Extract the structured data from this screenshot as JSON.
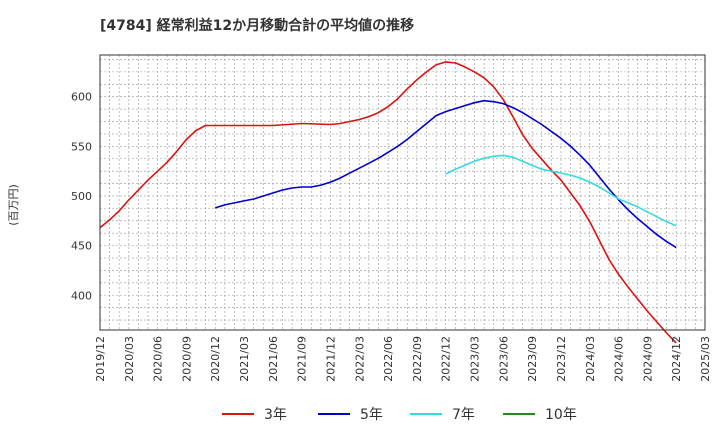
{
  "chart_data": {
    "type": "line",
    "title": "[4784]  経常利益12か月移動合計の平均値の推移",
    "ylabel": "(百万円)",
    "xlabel": "",
    "x_ticks": [
      "2019/12",
      "2020/03",
      "2020/06",
      "2020/09",
      "2020/12",
      "2021/03",
      "2021/06",
      "2021/09",
      "2021/12",
      "2022/03",
      "2022/06",
      "2022/09",
      "2022/12",
      "2023/03",
      "2023/06",
      "2023/09",
      "2023/12",
      "2024/03",
      "2024/06",
      "2024/09",
      "2024/12",
      "2025/03"
    ],
    "y_ticks": [
      400,
      450,
      500,
      550,
      600
    ],
    "ylim": [
      365,
      642
    ],
    "xlim": [
      "2019/12",
      "2025/03"
    ],
    "grid": true,
    "legend_position": "bottom",
    "series": [
      {
        "name": "3年",
        "color": "#dd1111",
        "points": [
          [
            "2019/12",
            468
          ],
          [
            "2020/01",
            476
          ],
          [
            "2020/02",
            485
          ],
          [
            "2020/03",
            496
          ],
          [
            "2020/04",
            506
          ],
          [
            "2020/05",
            516
          ],
          [
            "2020/06",
            525
          ],
          [
            "2020/07",
            534
          ],
          [
            "2020/08",
            545
          ],
          [
            "2020/09",
            557
          ],
          [
            "2020/10",
            566
          ],
          [
            "2020/11",
            571
          ],
          [
            "2020/12",
            571
          ],
          [
            "2021/03",
            571
          ],
          [
            "2021/06",
            571
          ],
          [
            "2021/09",
            573
          ],
          [
            "2021/12",
            572
          ],
          [
            "2022/01",
            573
          ],
          [
            "2022/02",
            575
          ],
          [
            "2022/03",
            577
          ],
          [
            "2022/04",
            580
          ],
          [
            "2022/05",
            584
          ],
          [
            "2022/06",
            590
          ],
          [
            "2022/07",
            598
          ],
          [
            "2022/08",
            608
          ],
          [
            "2022/09",
            617
          ],
          [
            "2022/10",
            625
          ],
          [
            "2022/11",
            632
          ],
          [
            "2022/12",
            635
          ],
          [
            "2023/01",
            634
          ],
          [
            "2023/02",
            630
          ],
          [
            "2023/03",
            625
          ],
          [
            "2023/04",
            619
          ],
          [
            "2023/05",
            610
          ],
          [
            "2023/06",
            597
          ],
          [
            "2023/07",
            580
          ],
          [
            "2023/08",
            562
          ],
          [
            "2023/09",
            548
          ],
          [
            "2023/10",
            537
          ],
          [
            "2023/11",
            526
          ],
          [
            "2023/12",
            516
          ],
          [
            "2024/01",
            503
          ],
          [
            "2024/02",
            490
          ],
          [
            "2024/03",
            474
          ],
          [
            "2024/04",
            455
          ],
          [
            "2024/05",
            436
          ],
          [
            "2024/06",
            421
          ],
          [
            "2024/07",
            408
          ],
          [
            "2024/08",
            396
          ],
          [
            "2024/09",
            384
          ],
          [
            "2024/10",
            373
          ],
          [
            "2024/11",
            362
          ],
          [
            "2024/12",
            352
          ]
        ]
      },
      {
        "name": "5年",
        "color": "#0000cc",
        "points": [
          [
            "2020/12",
            488
          ],
          [
            "2021/01",
            491
          ],
          [
            "2021/02",
            493
          ],
          [
            "2021/03",
            495
          ],
          [
            "2021/04",
            497
          ],
          [
            "2021/05",
            500
          ],
          [
            "2021/06",
            503
          ],
          [
            "2021/07",
            506
          ],
          [
            "2021/08",
            508
          ],
          [
            "2021/09",
            509
          ],
          [
            "2021/10",
            509
          ],
          [
            "2021/11",
            511
          ],
          [
            "2021/12",
            514
          ],
          [
            "2022/01",
            518
          ],
          [
            "2022/02",
            523
          ],
          [
            "2022/03",
            528
          ],
          [
            "2022/04",
            533
          ],
          [
            "2022/05",
            538
          ],
          [
            "2022/06",
            544
          ],
          [
            "2022/07",
            550
          ],
          [
            "2022/08",
            557
          ],
          [
            "2022/09",
            565
          ],
          [
            "2022/10",
            573
          ],
          [
            "2022/11",
            581
          ],
          [
            "2022/12",
            585
          ],
          [
            "2023/01",
            588
          ],
          [
            "2023/02",
            591
          ],
          [
            "2023/03",
            594
          ],
          [
            "2023/04",
            596
          ],
          [
            "2023/05",
            595
          ],
          [
            "2023/06",
            593
          ],
          [
            "2023/07",
            589
          ],
          [
            "2023/08",
            584
          ],
          [
            "2023/09",
            578
          ],
          [
            "2023/10",
            572
          ],
          [
            "2023/11",
            565
          ],
          [
            "2023/12",
            558
          ],
          [
            "2024/01",
            550
          ],
          [
            "2024/02",
            541
          ],
          [
            "2024/03",
            531
          ],
          [
            "2024/04",
            519
          ],
          [
            "2024/05",
            507
          ],
          [
            "2024/06",
            496
          ],
          [
            "2024/07",
            486
          ],
          [
            "2024/08",
            477
          ],
          [
            "2024/09",
            469
          ],
          [
            "2024/10",
            461
          ],
          [
            "2024/11",
            454
          ],
          [
            "2024/12",
            448
          ]
        ]
      },
      {
        "name": "7年",
        "color": "#33dddd",
        "points": [
          [
            "2022/12",
            522
          ],
          [
            "2023/01",
            527
          ],
          [
            "2023/02",
            531
          ],
          [
            "2023/03",
            535
          ],
          [
            "2023/04",
            538
          ],
          [
            "2023/05",
            540
          ],
          [
            "2023/06",
            541
          ],
          [
            "2023/07",
            539
          ],
          [
            "2023/08",
            535
          ],
          [
            "2023/09",
            531
          ],
          [
            "2023/10",
            527
          ],
          [
            "2023/11",
            525
          ],
          [
            "2023/12",
            523
          ],
          [
            "2024/01",
            521
          ],
          [
            "2024/02",
            518
          ],
          [
            "2024/03",
            514
          ],
          [
            "2024/04",
            509
          ],
          [
            "2024/05",
            503
          ],
          [
            "2024/06",
            497
          ],
          [
            "2024/07",
            493
          ],
          [
            "2024/08",
            489
          ],
          [
            "2024/09",
            484
          ],
          [
            "2024/10",
            479
          ],
          [
            "2024/11",
            474
          ],
          [
            "2024/12",
            470
          ]
        ]
      },
      {
        "name": "10年",
        "color": "#228822",
        "points": []
      }
    ]
  }
}
